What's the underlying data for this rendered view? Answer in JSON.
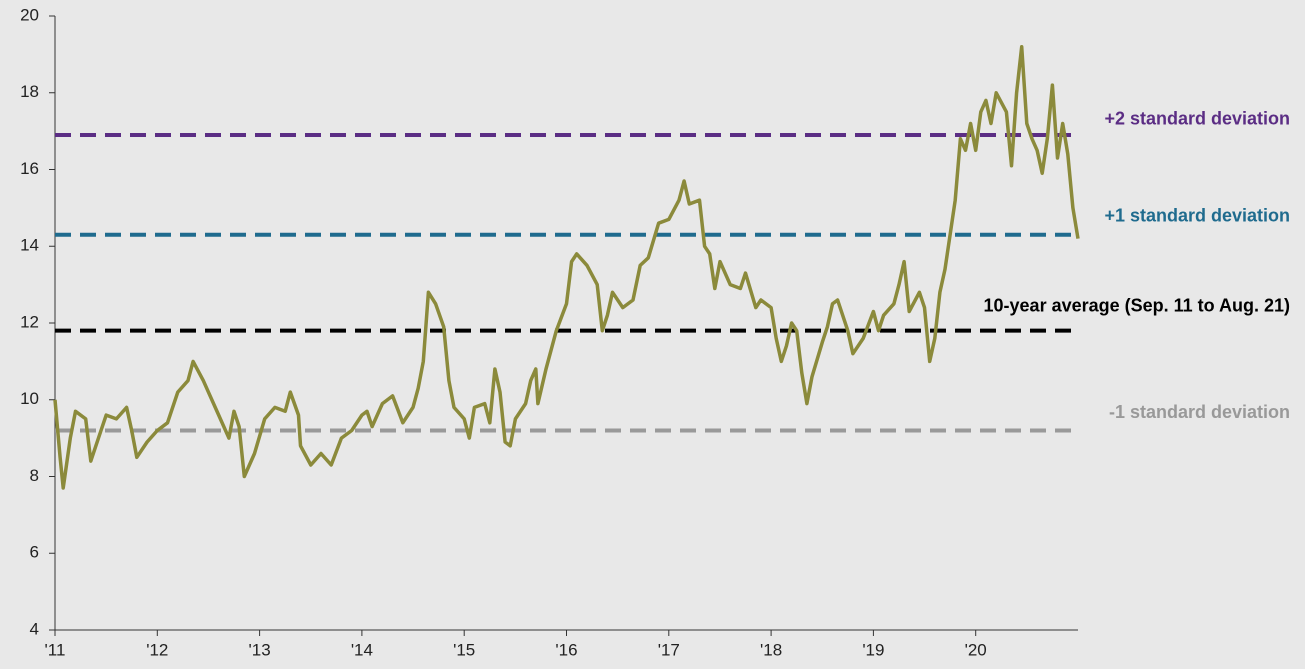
{
  "chart_data": {
    "type": "line",
    "x": [
      2011.0,
      2011.05,
      2011.08,
      2011.15,
      2011.2,
      2011.3,
      2011.35,
      2011.45,
      2011.5,
      2011.6,
      2011.7,
      2011.75,
      2011.8,
      2011.9,
      2012.0,
      2012.1,
      2012.2,
      2012.3,
      2012.35,
      2012.45,
      2012.5,
      2012.6,
      2012.7,
      2012.75,
      2012.8,
      2012.85,
      2012.95,
      2013.05,
      2013.15,
      2013.25,
      2013.3,
      2013.38,
      2013.4,
      2013.5,
      2013.6,
      2013.7,
      2013.8,
      2013.9,
      2014.0,
      2014.05,
      2014.1,
      2014.2,
      2014.3,
      2014.4,
      2014.5,
      2014.55,
      2014.6,
      2014.65,
      2014.72,
      2014.8,
      2014.85,
      2014.9,
      2015.0,
      2015.05,
      2015.1,
      2015.2,
      2015.25,
      2015.3,
      2015.35,
      2015.4,
      2015.45,
      2015.5,
      2015.6,
      2015.65,
      2015.7,
      2015.72,
      2015.8,
      2015.9,
      2016.0,
      2016.05,
      2016.1,
      2016.2,
      2016.3,
      2016.35,
      2016.4,
      2016.45,
      2016.55,
      2016.65,
      2016.72,
      2016.8,
      2016.9,
      2017.0,
      2017.1,
      2017.15,
      2017.2,
      2017.3,
      2017.35,
      2017.4,
      2017.45,
      2017.5,
      2017.6,
      2017.7,
      2017.75,
      2017.85,
      2017.9,
      2018.0,
      2018.05,
      2018.1,
      2018.15,
      2018.2,
      2018.25,
      2018.3,
      2018.35,
      2018.4,
      2018.5,
      2018.55,
      2018.6,
      2018.65,
      2018.75,
      2018.8,
      2018.9,
      2019.0,
      2019.05,
      2019.1,
      2019.2,
      2019.25,
      2019.3,
      2019.35,
      2019.45,
      2019.5,
      2019.55,
      2019.6,
      2019.65,
      2019.7,
      2019.75,
      2019.8,
      2019.85,
      2019.9,
      2019.95,
      2020.0,
      2020.05,
      2020.1,
      2020.15,
      2020.2,
      2020.3,
      2020.35,
      2020.4,
      2020.45,
      2020.5,
      2020.55,
      2020.6,
      2020.65,
      2020.7,
      2020.75,
      2020.8,
      2020.85,
      2020.9,
      2020.95,
      2021.0
    ],
    "series": [
      {
        "color": "#8b8a3b",
        "values": [
          10.0,
          8.5,
          7.7,
          9.0,
          9.7,
          9.5,
          8.4,
          9.2,
          9.6,
          9.5,
          9.8,
          9.2,
          8.5,
          8.9,
          9.2,
          9.4,
          10.2,
          10.5,
          11.0,
          10.5,
          10.2,
          9.6,
          9.0,
          9.7,
          9.3,
          8.0,
          8.6,
          9.5,
          9.8,
          9.7,
          10.2,
          9.6,
          8.8,
          8.3,
          8.6,
          8.3,
          9.0,
          9.2,
          9.6,
          9.7,
          9.3,
          9.9,
          10.1,
          9.4,
          9.8,
          10.3,
          11.0,
          12.8,
          12.5,
          11.9,
          10.5,
          9.8,
          9.5,
          9.0,
          9.8,
          9.9,
          9.4,
          10.8,
          10.2,
          8.9,
          8.8,
          9.5,
          9.9,
          10.5,
          10.8,
          9.9,
          10.8,
          11.8,
          12.5,
          13.6,
          13.8,
          13.5,
          13.0,
          11.8,
          12.2,
          12.8,
          12.4,
          12.6,
          13.5,
          13.7,
          14.6,
          14.7,
          15.2,
          15.7,
          15.1,
          15.2,
          14.0,
          13.8,
          12.9,
          13.6,
          13.0,
          12.9,
          13.3,
          12.4,
          12.6,
          12.4,
          11.6,
          11.0,
          11.4,
          12.0,
          11.8,
          10.7,
          9.9,
          10.6,
          11.5,
          11.9,
          12.5,
          12.6,
          11.8,
          11.2,
          11.6,
          12.3,
          11.8,
          12.2,
          12.5,
          13.0,
          13.6,
          12.3,
          12.8,
          12.4,
          11.0,
          11.6,
          12.8,
          13.4,
          14.3,
          15.2,
          16.8,
          16.5,
          17.2,
          16.5,
          17.5,
          17.8,
          17.2,
          18.0,
          17.5,
          16.1,
          18.0,
          19.2,
          17.2,
          16.8,
          16.5,
          15.9,
          16.8,
          18.2,
          16.3,
          17.2,
          16.4,
          15.0,
          14.2
        ]
      }
    ],
    "reference_lines": [
      {
        "label": "+2 standard deviation",
        "value": 16.9,
        "color": "#5b2d84"
      },
      {
        "label": "+1 standard deviation",
        "value": 14.3,
        "color": "#1f6b8e"
      },
      {
        "label": "10-year average (Sep. 11 to Aug. 21)",
        "value": 11.8,
        "color": "#000000"
      },
      {
        "label": "-1 standard deviation",
        "value": 9.2,
        "color": "#999999"
      }
    ],
    "xlim": [
      2011,
      2021
    ],
    "ylim": [
      4,
      20
    ],
    "yticks": [
      4,
      6,
      8,
      10,
      12,
      14,
      16,
      18,
      20
    ],
    "xticks": [
      {
        "value": 2011,
        "label": "'11"
      },
      {
        "value": 2012,
        "label": "'12"
      },
      {
        "value": 2013,
        "label": "'13"
      },
      {
        "value": 2014,
        "label": "'14"
      },
      {
        "value": 2015,
        "label": "'15"
      },
      {
        "value": 2016,
        "label": "'16"
      },
      {
        "value": 2017,
        "label": "'17"
      },
      {
        "value": 2018,
        "label": "'18"
      },
      {
        "value": 2019,
        "label": "'19"
      },
      {
        "value": 2020,
        "label": "'20"
      }
    ]
  }
}
